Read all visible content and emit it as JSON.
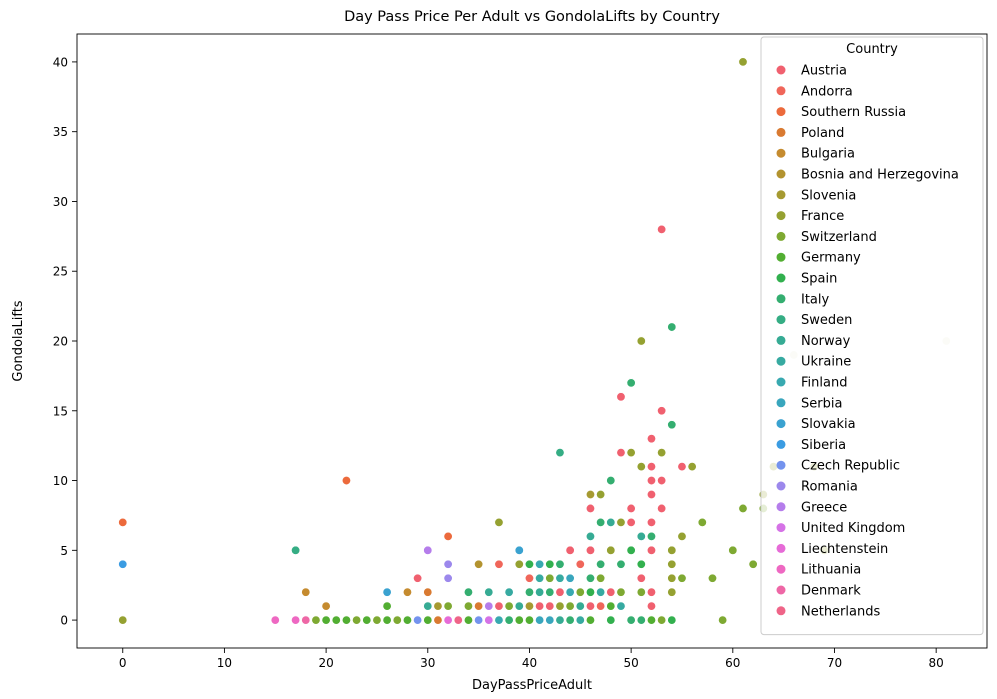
{
  "chart_data": {
    "type": "scatter",
    "title": "Day Pass Price Per Adult vs GondolaLifts by Country",
    "xlabel": "DayPassPriceAdult",
    "ylabel": "GondolaLifts",
    "xlim": [
      -4.5,
      85
    ],
    "ylim": [
      -2,
      42
    ],
    "xticks": [
      0,
      10,
      20,
      30,
      40,
      50,
      60,
      70,
      80
    ],
    "yticks": [
      0,
      5,
      10,
      15,
      20,
      25,
      30,
      35,
      40
    ],
    "grid": false,
    "legend": {
      "title": "Country",
      "placement": "upper right"
    },
    "series": [
      {
        "name": "Austria",
        "color": "#f0606f",
        "points": [
          [
            29,
            3
          ],
          [
            30,
            1
          ],
          [
            34,
            0
          ],
          [
            36,
            1
          ],
          [
            37,
            1
          ],
          [
            41,
            1
          ],
          [
            42,
            1
          ],
          [
            43,
            2
          ],
          [
            44,
            5
          ],
          [
            46,
            1
          ],
          [
            46,
            2
          ],
          [
            46,
            5
          ],
          [
            46,
            8
          ],
          [
            48,
            0
          ],
          [
            48,
            2
          ],
          [
            49,
            12
          ],
          [
            49,
            16
          ],
          [
            50,
            7
          ],
          [
            50,
            8
          ],
          [
            51,
            3
          ],
          [
            52,
            1
          ],
          [
            52,
            2
          ],
          [
            52,
            5
          ],
          [
            52,
            7
          ],
          [
            52,
            9
          ],
          [
            52,
            10
          ],
          [
            52,
            11
          ],
          [
            52,
            13
          ],
          [
            53,
            8
          ],
          [
            53,
            10
          ],
          [
            53,
            15
          ],
          [
            53,
            28
          ],
          [
            55,
            11
          ]
        ]
      },
      {
        "name": "Andorra",
        "color": "#f0665a",
        "points": [
          [
            37,
            4
          ],
          [
            38,
            0
          ],
          [
            40,
            3
          ],
          [
            41,
            0
          ],
          [
            43,
            0
          ],
          [
            45,
            4
          ],
          [
            47,
            1
          ]
        ]
      },
      {
        "name": "Southern Russia",
        "color": "#ec6a3c",
        "points": [
          [
            0,
            7
          ],
          [
            22,
            10
          ],
          [
            32,
            6
          ]
        ]
      },
      {
        "name": "Poland",
        "color": "#d97a31",
        "points": [
          [
            30,
            2
          ],
          [
            31,
            0
          ],
          [
            35,
            1
          ]
        ]
      },
      {
        "name": "Bulgaria",
        "color": "#c58b2f",
        "points": [
          [
            18,
            2
          ],
          [
            20,
            1
          ],
          [
            28,
            2
          ],
          [
            34,
            0
          ]
        ]
      },
      {
        "name": "Bosnia and Herzegovina",
        "color": "#b3932f",
        "points": [
          [
            28,
            0
          ],
          [
            35,
            4
          ],
          [
            39,
            0
          ]
        ]
      },
      {
        "name": "Slovenia",
        "color": "#a69a31",
        "points": [
          [
            27,
            0
          ],
          [
            29,
            0
          ],
          [
            31,
            1
          ],
          [
            33,
            0
          ],
          [
            36,
            0
          ],
          [
            38,
            0
          ],
          [
            40,
            1
          ],
          [
            42,
            0
          ],
          [
            44,
            0
          ],
          [
            46,
            9
          ]
        ]
      },
      {
        "name": "France",
        "color": "#95a131",
        "points": [
          [
            0,
            0
          ],
          [
            35,
            0
          ],
          [
            37,
            7
          ],
          [
            39,
            4
          ],
          [
            41,
            0
          ],
          [
            43,
            1
          ],
          [
            46,
            3
          ],
          [
            47,
            9
          ],
          [
            48,
            5
          ],
          [
            49,
            7
          ],
          [
            50,
            12
          ],
          [
            51,
            11
          ],
          [
            51,
            20
          ],
          [
            53,
            12
          ],
          [
            54,
            2
          ],
          [
            54,
            3
          ],
          [
            54,
            4
          ],
          [
            54,
            5
          ],
          [
            55,
            6
          ],
          [
            56,
            11
          ],
          [
            61,
            40
          ],
          [
            63,
            9
          ],
          [
            64,
            11
          ],
          [
            68,
            11
          ],
          [
            69,
            5
          ]
        ]
      },
      {
        "name": "Switzerland",
        "color": "#7ea932",
        "points": [
          [
            19,
            0
          ],
          [
            23,
            0
          ],
          [
            25,
            0
          ],
          [
            27,
            0
          ],
          [
            30,
            0
          ],
          [
            32,
            1
          ],
          [
            34,
            1
          ],
          [
            36,
            2
          ],
          [
            38,
            1
          ],
          [
            40,
            2
          ],
          [
            42,
            3
          ],
          [
            44,
            1
          ],
          [
            45,
            2
          ],
          [
            47,
            3
          ],
          [
            49,
            2
          ],
          [
            51,
            2
          ],
          [
            53,
            0
          ],
          [
            55,
            3
          ],
          [
            57,
            7
          ],
          [
            58,
            3
          ],
          [
            59,
            0
          ],
          [
            60,
            5
          ],
          [
            61,
            8
          ],
          [
            62,
            4
          ],
          [
            63,
            8
          ]
        ]
      },
      {
        "name": "Germany",
        "color": "#52ae32",
        "points": [
          [
            20,
            0
          ],
          [
            21,
            0
          ],
          [
            22,
            0
          ],
          [
            24,
            0
          ],
          [
            26,
            0
          ],
          [
            26,
            1
          ],
          [
            28,
            0
          ],
          [
            30,
            0
          ],
          [
            32,
            0
          ],
          [
            34,
            0
          ],
          [
            37,
            0
          ],
          [
            38,
            0
          ],
          [
            39,
            0
          ],
          [
            40,
            0
          ],
          [
            42,
            0
          ],
          [
            44,
            0
          ],
          [
            46,
            0
          ],
          [
            48,
            1
          ],
          [
            50,
            0
          ],
          [
            52,
            0
          ]
        ]
      },
      {
        "name": "Spain",
        "color": "#32b04e",
        "points": [
          [
            40,
            4
          ],
          [
            42,
            4
          ],
          [
            46,
            2
          ],
          [
            48,
            0
          ],
          [
            50,
            5
          ],
          [
            51,
            4
          ],
          [
            54,
            0
          ]
        ]
      },
      {
        "name": "Italy",
        "color": "#34ae70",
        "points": [
          [
            34,
            2
          ],
          [
            38,
            0
          ],
          [
            40,
            2
          ],
          [
            42,
            2
          ],
          [
            43,
            4
          ],
          [
            44,
            0
          ],
          [
            46,
            3
          ],
          [
            47,
            4
          ],
          [
            47,
            7
          ],
          [
            48,
            10
          ],
          [
            49,
            4
          ],
          [
            50,
            0
          ],
          [
            50,
            17
          ],
          [
            51,
            0
          ],
          [
            52,
            6
          ],
          [
            54,
            14
          ],
          [
            54,
            21
          ]
        ]
      },
      {
        "name": "Sweden",
        "color": "#35ad84",
        "points": [
          [
            17,
            5
          ],
          [
            43,
            12
          ]
        ]
      },
      {
        "name": "Norway",
        "color": "#36ab94",
        "points": [
          [
            30,
            1
          ],
          [
            36,
            2
          ],
          [
            39,
            1
          ],
          [
            41,
            2
          ],
          [
            43,
            0
          ],
          [
            45,
            1
          ],
          [
            46,
            6
          ],
          [
            48,
            7
          ],
          [
            51,
            6
          ]
        ]
      },
      {
        "name": "Ukraine",
        "color": "#37aaa1",
        "points": [
          [
            38,
            2
          ],
          [
            41,
            3
          ],
          [
            43,
            3
          ],
          [
            45,
            0
          ],
          [
            47,
            2
          ],
          [
            49,
            1
          ]
        ]
      },
      {
        "name": "Finland",
        "color": "#38a9b0",
        "points": [
          [
            33,
            0
          ],
          [
            37,
            0
          ],
          [
            41,
            4
          ],
          [
            44,
            2
          ]
        ]
      },
      {
        "name": "Serbia",
        "color": "#39a6bd",
        "points": [
          [
            41,
            0
          ],
          [
            42,
            0
          ],
          [
            44,
            3
          ]
        ]
      },
      {
        "name": "Slovakia",
        "color": "#3aa2d0",
        "points": [
          [
            26,
            2
          ],
          [
            36,
            0
          ],
          [
            39,
            5
          ]
        ]
      },
      {
        "name": "Siberia",
        "color": "#3b9ce2",
        "points": [
          [
            0,
            4
          ]
        ]
      },
      {
        "name": "Czech Republic",
        "color": "#7493ee",
        "points": [
          [
            29,
            0
          ],
          [
            35,
            0
          ]
        ]
      },
      {
        "name": "Romania",
        "color": "#9c88ec",
        "points": [
          [
            32,
            3
          ],
          [
            32,
            4
          ]
        ]
      },
      {
        "name": "Greece",
        "color": "#b57deb",
        "points": [
          [
            30,
            5
          ],
          [
            36,
            1
          ]
        ]
      },
      {
        "name": "United Kingdom",
        "color": "#d572e6",
        "points": [
          [
            33,
            0
          ],
          [
            36,
            0
          ]
        ]
      },
      {
        "name": "Liechtenstein",
        "color": "#e66bd7",
        "points": [
          [
            18,
            0
          ],
          [
            32,
            0
          ]
        ]
      },
      {
        "name": "Lithuania",
        "color": "#ee68c2",
        "points": [
          [
            15,
            0
          ],
          [
            17,
            0
          ]
        ]
      },
      {
        "name": "Denmark",
        "color": "#ee67a6",
        "points": [
          [
            18,
            0
          ]
        ]
      },
      {
        "name": "Netherlands",
        "color": "#ef6488",
        "points": [
          [
            33,
            0
          ]
        ]
      },
      {
        "name": "",
        "color": "#e8ebd8",
        "points": [
          [
            66,
            19
          ],
          [
            81,
            20
          ]
        ]
      }
    ]
  }
}
